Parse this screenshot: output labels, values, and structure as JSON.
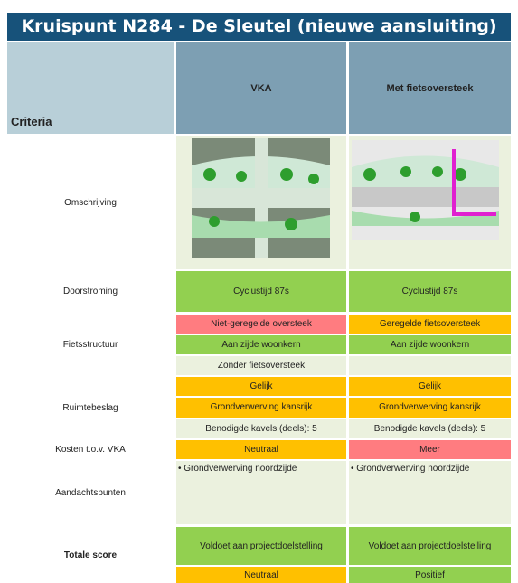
{
  "header": {
    "title": "Kruispunt N284 - De Sleutel (nieuwe aansluiting)"
  },
  "table": {
    "columns": [
      "Criteria",
      "VKA",
      "Met fietsoversteek"
    ],
    "rows": [
      {
        "label": "Omschrijving"
      },
      {
        "label": "Doorstroming",
        "vka": [
          {
            "text": "Cyclustijd 87s",
            "color": "#92d050"
          }
        ],
        "met": [
          {
            "text": "Cyclustijd 87s",
            "color": "#92d050"
          }
        ]
      },
      {
        "label": "Fietsstructuur",
        "vka": [
          {
            "text": "Niet-geregelde oversteek",
            "color": "#ff7c80"
          },
          {
            "text": "Aan zijde woonkern",
            "color": "#92d050"
          },
          {
            "text": "Zonder fietsoversteek",
            "color": "#ebf1de"
          }
        ],
        "met": [
          {
            "text": "Geregelde fietsoversteek",
            "color": "#ffc000"
          },
          {
            "text": "Aan zijde woonkern",
            "color": "#92d050"
          }
        ]
      },
      {
        "label": "Ruimtebeslag",
        "vka": [
          {
            "text": "Gelijk",
            "color": "#ffc000"
          },
          {
            "text": "Grondverwerving kansrijk",
            "color": "#ffc000"
          },
          {
            "text": "Benodigde kavels (deels): 5",
            "color": "#ebf1de"
          }
        ],
        "met": [
          {
            "text": "Gelijk",
            "color": "#ffc000"
          },
          {
            "text": "Grondverwerving kansrijk",
            "color": "#ffc000"
          },
          {
            "text": "Benodigde kavels (deels): 5",
            "color": "#ebf1de"
          }
        ]
      },
      {
        "label": "Kosten t.o.v. VKA",
        "vka": [
          {
            "text": "Neutraal",
            "color": "#ffc000"
          }
        ],
        "met": [
          {
            "text": "Meer",
            "color": "#ff7c80"
          }
        ]
      },
      {
        "label": "Aandachtspunten",
        "vka": [
          {
            "text": "• Grondverwerving noordzijde",
            "color": "#ebf1de"
          }
        ],
        "met": [
          {
            "text": "• Grondverwerving noordzijde",
            "color": "#ebf1de"
          }
        ]
      },
      {
        "label": "Totale score",
        "vka": [
          {
            "text": "Voldoet aan projectdoelstelling",
            "color": "#92d050"
          },
          {
            "text": "Neutraal",
            "color": "#ffc000"
          }
        ],
        "met": [
          {
            "text": "Voldoet aan projectdoelstelling",
            "color": "#92d050"
          },
          {
            "text": "Positief",
            "color": "#92d050"
          }
        ]
      }
    ]
  }
}
